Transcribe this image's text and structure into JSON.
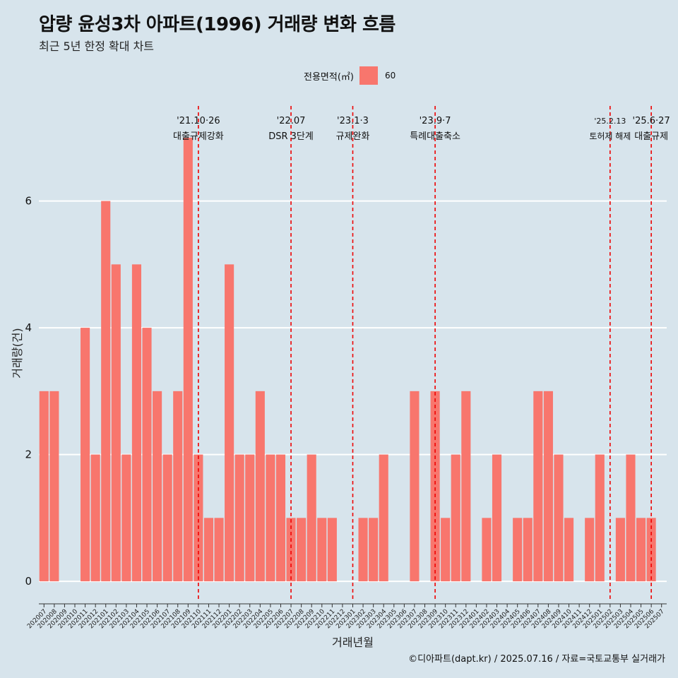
{
  "header": {
    "title": "압량 윤성3차 아파트(1996) 거래량 변화 흐름",
    "subtitle": "최근 5년 한정 확대 차트"
  },
  "legend": {
    "title": "전용면적(㎡)",
    "items": [
      {
        "label": "60",
        "color": "#f8766d"
      }
    ]
  },
  "caption": "©디아파트(dapt.kr) / 2025.07.16 / 자료=국토교통부 실거래가",
  "chart_data": {
    "type": "bar",
    "xlabel": "거래년월",
    "ylabel": "거래량(건)",
    "ylim": [
      -0.3,
      7.5
    ],
    "yticks": [
      0,
      2,
      4,
      6
    ],
    "bar_color": "#f8766d",
    "categories": [
      "202007",
      "202008",
      "202009",
      "202010",
      "202011",
      "202012",
      "202101",
      "202102",
      "202103",
      "202104",
      "202105",
      "202106",
      "202107",
      "202108",
      "202109",
      "202110",
      "202111",
      "202112",
      "202201",
      "202202",
      "202203",
      "202204",
      "202205",
      "202206",
      "202207",
      "202208",
      "202209",
      "202210",
      "202211",
      "202212",
      "202301",
      "202302",
      "202303",
      "202304",
      "202305",
      "202306",
      "202307",
      "202308",
      "202309",
      "202310",
      "202311",
      "202312",
      "202401",
      "202402",
      "202403",
      "202404",
      "202405",
      "202406",
      "202407",
      "202408",
      "202409",
      "202410",
      "202411",
      "202412",
      "202501",
      "202502",
      "202503",
      "202504",
      "202505",
      "202506",
      "202507"
    ],
    "values": [
      3,
      3,
      0,
      0,
      4,
      2,
      6,
      5,
      2,
      5,
      4,
      3,
      2,
      3,
      7,
      2,
      1,
      1,
      5,
      2,
      2,
      3,
      2,
      2,
      1,
      1,
      2,
      1,
      1,
      0,
      0,
      1,
      1,
      2,
      0,
      0,
      3,
      0,
      3,
      1,
      2,
      3,
      0,
      1,
      2,
      0,
      1,
      1,
      3,
      3,
      2,
      1,
      0,
      1,
      2,
      0,
      1,
      2,
      1,
      1,
      0
    ],
    "events": [
      {
        "category": "202110",
        "date": "'21.10·26",
        "label": "대출규제강화"
      },
      {
        "category": "202207",
        "date": "'22.07",
        "label": "DSR 3단계"
      },
      {
        "category": "202301",
        "date": "'23.1·3",
        "label": "규제완화"
      },
      {
        "category": "202309",
        "date": "'23.9·7",
        "label": "특례대출축소"
      },
      {
        "category": "202502",
        "date": "'25.2.13",
        "label": "토허제 해제"
      },
      {
        "category": "202506",
        "date": "'25.6·27",
        "label": "대출규제"
      }
    ],
    "event_line_color": "#ee0000",
    "grid": true,
    "legend_position": "top-center"
  }
}
